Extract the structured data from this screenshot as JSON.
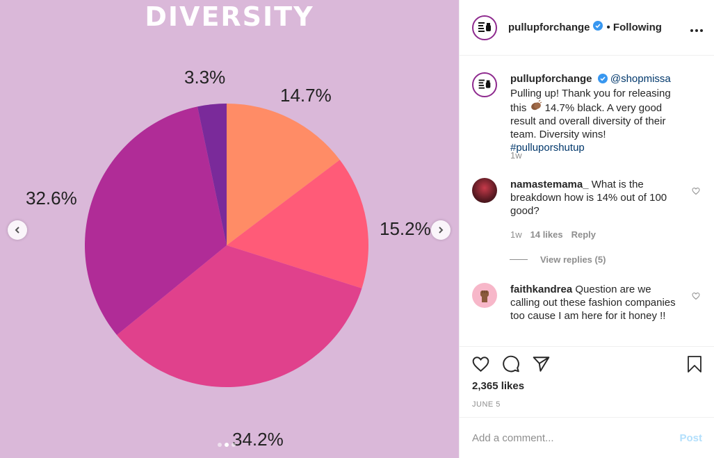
{
  "post": {
    "title": "DIVERSITY",
    "username": "pullupforchange",
    "following": "• Following",
    "caption": {
      "username": "pullupforchange",
      "mention": "@shopmissa",
      "text1": " Pulling up! Thank you for releasing this",
      "text2": " 14.7% black. A very good result and overall diversity of their team. Diversity wins! ",
      "hashtag": "#pulluporshutup",
      "time": "1w"
    },
    "comments": [
      {
        "username": "namastemama_",
        "text": " What is the breakdown how is 14% out of 100 good?",
        "time": "1w",
        "likes": "14 likes",
        "reply": "Reply",
        "view_replies": "View replies (5)"
      },
      {
        "username": "faithkandrea",
        "text": " Question are we calling out these fashion companies too cause I am here for it honey !!"
      }
    ],
    "likes": "2,365 likes",
    "date": "JUNE 5",
    "add_comment_placeholder": "Add a comment...",
    "post_label": "Post"
  },
  "chart_data": {
    "type": "pie",
    "title": "DIVERSITY",
    "values": [
      14.7,
      15.2,
      34.2,
      32.6,
      3.3
    ],
    "labels": [
      "14.7%",
      "15.2%",
      "34.2%",
      "32.6%",
      "3.3%"
    ],
    "colors": [
      "#ff8c66",
      "#ff5b78",
      "#e0418c",
      "#b02c97",
      "#7a2a9a"
    ]
  },
  "icons": {
    "heart": "heart-icon",
    "comment": "comment-icon",
    "share": "paper-plane-icon",
    "save": "bookmark-icon"
  }
}
